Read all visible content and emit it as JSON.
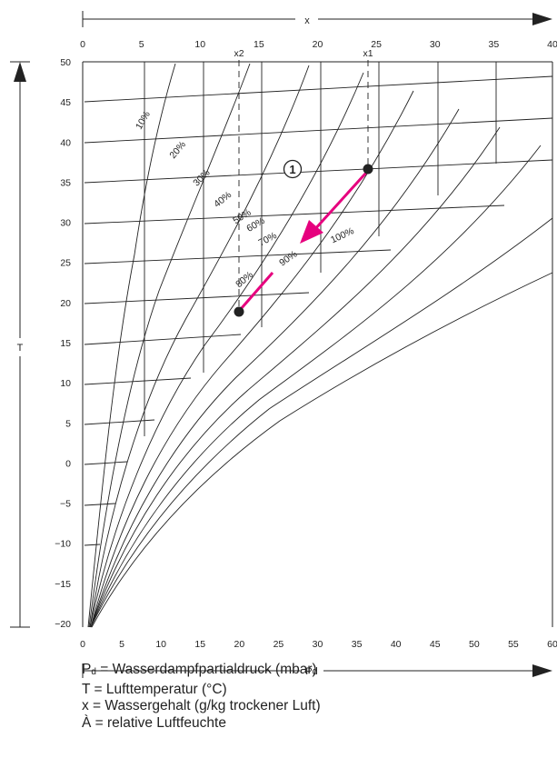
{
  "diagram": {
    "top_axis": {
      "label": "x",
      "ticks": [
        0,
        5,
        10,
        15,
        20,
        25,
        30,
        35,
        40
      ]
    },
    "bottom_axis": {
      "label": "Pd",
      "ticks": [
        0,
        5,
        10,
        15,
        20,
        25,
        30,
        35,
        40,
        45,
        50,
        55,
        60
      ]
    },
    "left_axis": {
      "label": "T",
      "ticks": [
        50,
        45,
        40,
        35,
        30,
        25,
        20,
        15,
        10,
        5,
        0,
        -5,
        -10,
        -15,
        -20
      ]
    },
    "markers": {
      "x1": "x1",
      "x2": "x2",
      "point_label": "1"
    },
    "rh_curves": [
      "10%",
      "20%",
      "30%",
      "40%",
      "50%",
      "60%",
      "70%",
      "80%",
      "90%",
      "100%"
    ],
    "accent_color": "#e6007e"
  },
  "legend": {
    "pd_symbol": "P",
    "pd_sub": "d",
    "pd_text": " = Wasserdampfpartialdruck (mbar)",
    "t_text": "T = Lufttemperatur (°C)",
    "x_text": "x = Wassergehalt (g/kg trockener Luft)",
    "rh_text": "À = relative Luftfeuchte"
  }
}
